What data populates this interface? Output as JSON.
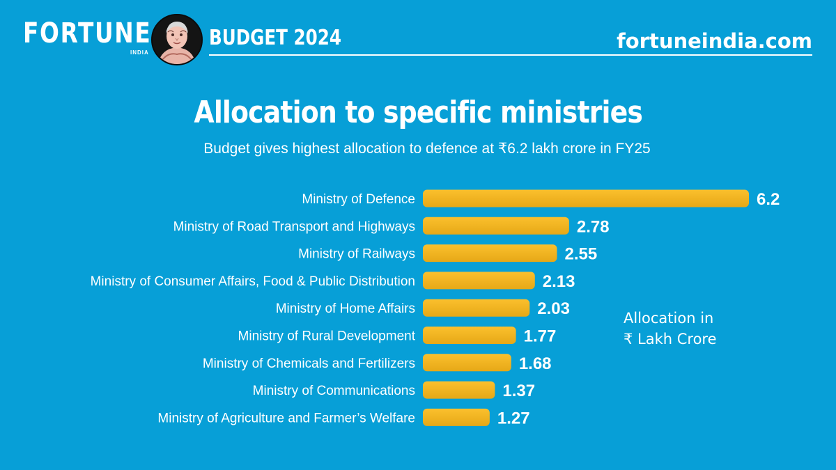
{
  "header": {
    "brand_name": "FORTUNE",
    "brand_sub": "INDIA",
    "budget_tag": "BUDGET 2024",
    "site": "fortuneindia.com"
  },
  "colors": {
    "background": "#079fd7",
    "bar": "#fbc02d",
    "bar_edge": "#e6a817",
    "text": "#ffffff"
  },
  "chart_data": {
    "type": "bar",
    "orientation": "horizontal",
    "title": "Allocation to specific ministries",
    "subtitle": "Budget gives highest allocation to defence at ₹6.2 lakh crore in FY25",
    "unit_note": [
      "Allocation in",
      "₹ Lakh Crore"
    ],
    "categories": [
      "Ministry of Defence",
      "Ministry of Road Transport and Highways",
      "Ministry of Railways",
      "Ministry of Consumer Affairs, Food & Public Distribution",
      "Ministry of Home Affairs",
      "Ministry of Rural Development",
      "Ministry of Chemicals and Fertilizers",
      "Ministry of Communications",
      "Ministry of Agriculture and Farmer’s Welfare"
    ],
    "values": [
      6.2,
      2.78,
      2.55,
      2.13,
      2.03,
      1.77,
      1.68,
      1.37,
      1.27
    ],
    "value_labels": [
      "6.2",
      "2.78",
      "2.55",
      "2.13",
      "2.03",
      "1.77",
      "1.68",
      "1.37",
      "1.27"
    ],
    "xlim": [
      0,
      6.2
    ],
    "xlabel": "",
    "ylabel": "",
    "grid": false,
    "legend": "none"
  }
}
